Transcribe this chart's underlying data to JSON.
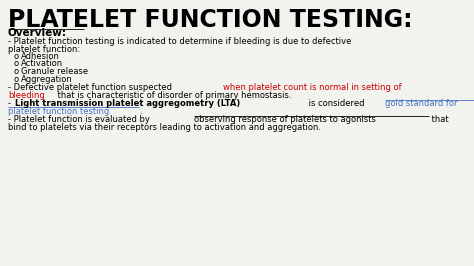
{
  "bg_color": "#f2f2ee",
  "title": "PLATELET FUNCTION TESTING:",
  "title_color": "#000000",
  "title_fontsize": 17,
  "overview": "Overview:",
  "body_fontsize": 6.0,
  "line1": "- Platelet function testing is indicated to determine if bleeding is due to defective",
  "line2": "platelet function:",
  "bullets": [
    "Adhesion",
    "Activation",
    "Granule release",
    "Aggregation"
  ],
  "p2_black1": "- Defective platelet function suspected ",
  "p2_red1": "when platelet count is normal in setting of",
  "p2_red2": "bleeding",
  "p2_black2": " that is characteristic of disorder of primary hemostasis.",
  "p3_dash": "- ",
  "p3_bold": "Light transmission platelet aggregometry (LTA)",
  "p3_mid": " is considered ",
  "p3_blue1": "gold standard for",
  "p3_blue2": "platelet function testing",
  "p3_dot": ".",
  "p4_a": "- Platelet function is evaluated by ",
  "p4_b": "observing response of platelets to agonists",
  "p4_c": " that",
  "p4_d": "bind to platelets via their receptors leading to activation and aggregation.",
  "red_color": "#cc0000",
  "blue_color": "#4472c4",
  "black_color": "#000000"
}
